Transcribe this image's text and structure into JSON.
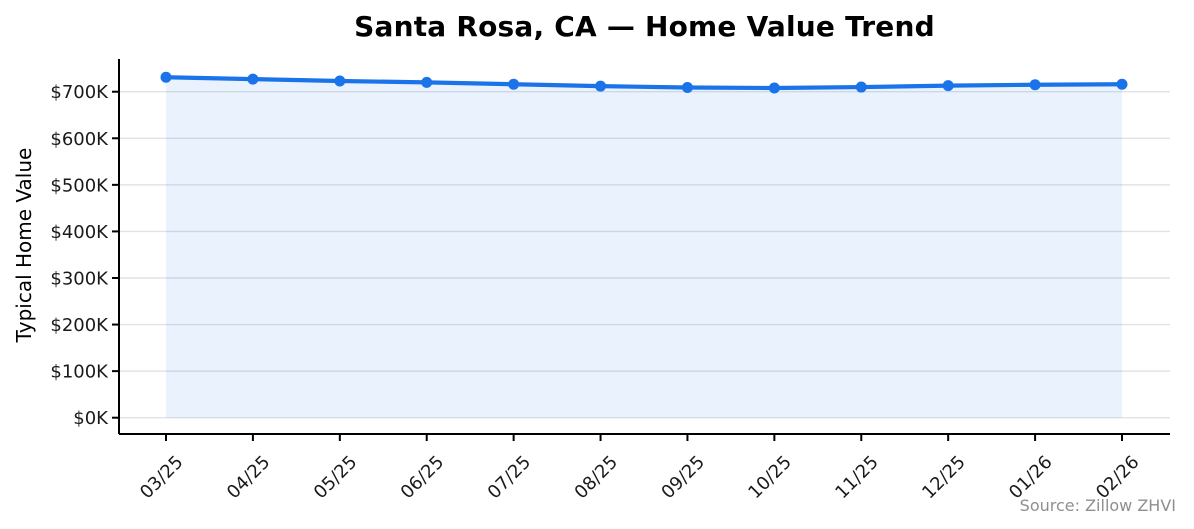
{
  "colors": {
    "line": "#1a73e8",
    "area_fill": "#1a73e8",
    "grid": "#e0e2e6",
    "axis": "#000000",
    "tick_text": "#1a1a1a",
    "title_text": "#000000",
    "source_text": "#8f8f8f",
    "background": "#ffffff"
  },
  "chart_data": {
    "type": "line",
    "title": "Santa Rosa, CA — Home Value Trend",
    "xlabel": "",
    "ylabel": "Typical Home Value",
    "source_note": "Source: Zillow ZHVI",
    "categories": [
      "03/25",
      "04/25",
      "05/25",
      "06/25",
      "07/25",
      "08/25",
      "09/25",
      "10/25",
      "11/25",
      "12/25",
      "01/26",
      "02/26"
    ],
    "series": [
      {
        "name": "Typical Home Value",
        "unit": "$K",
        "values": [
          731,
          727,
          723,
          720,
          716,
          712,
          709,
          708,
          710,
          713,
          715,
          716
        ]
      }
    ],
    "yticks": [
      0,
      100,
      200,
      300,
      400,
      500,
      600,
      700
    ],
    "ytick_labels": [
      "$0K",
      "$100K",
      "$200K",
      "$300K",
      "$400K",
      "$500K",
      "$600K",
      "$700K"
    ],
    "ylim": [
      0,
      772
    ],
    "grid": "horizontal",
    "legend": "none",
    "markers": true,
    "area_fill": true,
    "area_opacity": 0.09,
    "x_tick_rotation_deg": 45
  }
}
